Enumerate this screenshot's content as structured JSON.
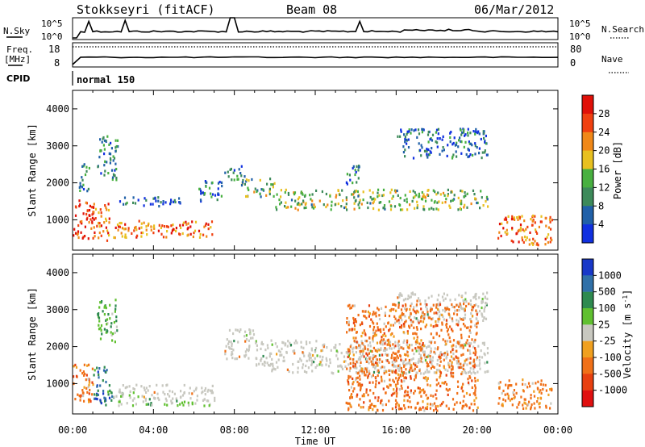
{
  "header": {
    "station": "Stokkseyri (fitACF)",
    "beam": "Beam 08",
    "date": "06/Mar/2012"
  },
  "strips": {
    "nsky_label": "N.Sky",
    "nsky_ticks": [
      "10^5",
      "10^0"
    ],
    "nsearch_label": "N.Search",
    "nsearch_ticks": [
      "10^5",
      "10^0"
    ],
    "freq_label": "Freq.",
    "freq_unit": "[MHz]",
    "freq_ticks": [
      "18",
      "8"
    ],
    "nave_label": "Nave",
    "nave_ticks": [
      "80",
      "0"
    ],
    "cpid_label": "CPID",
    "cpid_value": "normal 150"
  },
  "colors": {
    "power": [
      "#1030e0",
      "#2060a8",
      "#3d8a5a",
      "#48b040",
      "#e8c020",
      "#f08818",
      "#f04010",
      "#e01008"
    ],
    "velocity": [
      "#1838c8",
      "#3070a8",
      "#2e8a50",
      "#60c030",
      "#c8c8c0",
      "#f0a020",
      "#f07018",
      "#e84010",
      "#e01010"
    ],
    "ground_scatter": "#c8c8c0"
  },
  "chart_data": [
    {
      "type": "heatmap",
      "title": "Power",
      "xlabel": "Time UT",
      "ylabel": "Slant Range [km]",
      "xlim": [
        "00:00",
        "24:00"
      ],
      "x_ticks": [
        "00:00",
        "04:00",
        "08:00",
        "12:00",
        "16:00",
        "20:00",
        "00:00"
      ],
      "ylim": [
        180,
        4500
      ],
      "y_ticks": [
        1000,
        2000,
        3000,
        4000
      ],
      "colorbar": {
        "label": "Power [dB]",
        "ticks": [
          4,
          8,
          12,
          16,
          20,
          24,
          28
        ],
        "range": [
          0,
          30
        ]
      },
      "regions": [
        {
          "t": [
            0.0,
            1.0
          ],
          "r": [
            500,
            1600
          ],
          "v": 26
        },
        {
          "t": [
            0.3,
            0.8
          ],
          "r": [
            1800,
            2600
          ],
          "v": 10
        },
        {
          "t": [
            1.0,
            1.8
          ],
          "r": [
            450,
            1500
          ],
          "v": 22
        },
        {
          "t": [
            1.2,
            2.2
          ],
          "r": [
            2100,
            3300
          ],
          "v": 8
        },
        {
          "t": [
            2.0,
            7.0
          ],
          "r": [
            550,
            1000
          ],
          "v": 22
        },
        {
          "t": [
            2.3,
            5.5
          ],
          "r": [
            1400,
            1650
          ],
          "v": 6
        },
        {
          "t": [
            6.2,
            7.4
          ],
          "r": [
            1500,
            2100
          ],
          "v": 6
        },
        {
          "t": [
            7.5,
            8.5
          ],
          "r": [
            2100,
            2500
          ],
          "v": 8
        },
        {
          "t": [
            8.3,
            10.0
          ],
          "r": [
            1650,
            2150
          ],
          "v": 12
        },
        {
          "t": [
            10.0,
            20.5
          ],
          "r": [
            1300,
            1850
          ],
          "v": 14
        },
        {
          "t": [
            13.5,
            14.3
          ],
          "r": [
            2000,
            2500
          ],
          "v": 6
        },
        {
          "t": [
            16.0,
            20.5
          ],
          "r": [
            2700,
            3500
          ],
          "v": 6
        },
        {
          "t": [
            21.0,
            23.7
          ],
          "r": [
            350,
            1150
          ],
          "v": 22
        }
      ]
    },
    {
      "type": "heatmap",
      "title": "Velocity",
      "xlabel": "Time UT",
      "ylabel": "Slant Range [km]",
      "xlim": [
        "00:00",
        "24:00"
      ],
      "x_ticks": [
        "00:00",
        "04:00",
        "08:00",
        "12:00",
        "16:00",
        "20:00",
        "00:00"
      ],
      "ylim": [
        180,
        4500
      ],
      "y_ticks": [
        1000,
        2000,
        3000,
        4000
      ],
      "colorbar": {
        "label": "Velocity [m s^-1]",
        "ticks": [
          "1000",
          "500",
          "100",
          "25",
          "-25",
          "-100",
          "-500",
          "-1000"
        ]
      },
      "regions": [
        {
          "t": [
            0.0,
            1.0
          ],
          "r": [
            500,
            1600
          ],
          "v": -300
        },
        {
          "t": [
            1.0,
            2.0
          ],
          "r": [
            450,
            1500
          ],
          "v": 600
        },
        {
          "t": [
            1.2,
            2.2
          ],
          "r": [
            2100,
            3300
          ],
          "v": 80
        },
        {
          "t": [
            2.0,
            7.0
          ],
          "r": [
            550,
            1000
          ],
          "v": 0
        },
        {
          "t": [
            2.0,
            7.0
          ],
          "r": [
            420,
            560
          ],
          "v": 60
        },
        {
          "t": [
            7.5,
            9.0
          ],
          "r": [
            1700,
            2500
          ],
          "v": 0
        },
        {
          "t": [
            9.0,
            20.5
          ],
          "r": [
            1300,
            2200
          ],
          "v": 0
        },
        {
          "t": [
            16.0,
            20.5
          ],
          "r": [
            2700,
            3500
          ],
          "v": 0
        },
        {
          "t": [
            13.5,
            20.0
          ],
          "r": [
            300,
            3200
          ],
          "v": -300
        },
        {
          "t": [
            21.0,
            23.7
          ],
          "r": [
            350,
            1150
          ],
          "v": -200
        }
      ]
    }
  ]
}
